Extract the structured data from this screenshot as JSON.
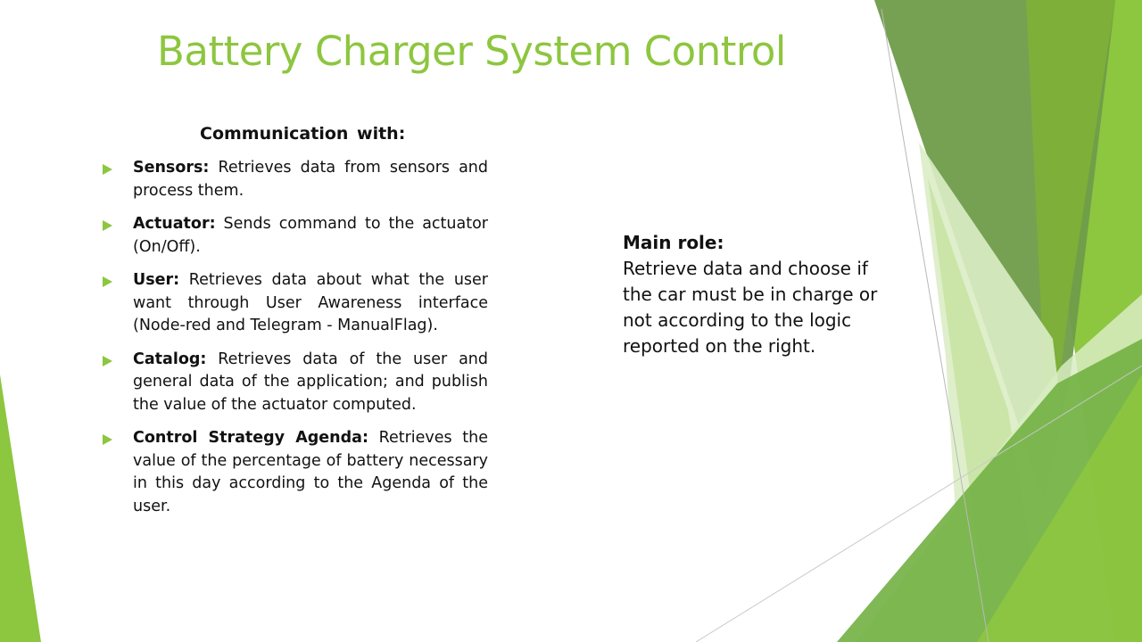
{
  "slide": {
    "title": "Battery Charger System Control",
    "communication_heading": "Communication with:",
    "bullets": [
      {
        "term": "Sensors:",
        "text": " Retrieves data from sensors and process them."
      },
      {
        "term": "Actuator:",
        "text": " Sends command to the actuator (On/Off)."
      },
      {
        "term": "User:",
        "text": " Retrieves data about what the user want through User Awareness interface (Node-red and Telegram - ManualFlag)."
      },
      {
        "term": "Catalog:",
        "text": " Retrieves data of the user and general data of the application; and publish the value of the actuator computed."
      },
      {
        "term": "Control Strategy Agenda:",
        "text": " Retrieves the value of the percentage of battery necessary in this day according to the Agenda of the user."
      }
    ],
    "main_role": {
      "label": "Main role:",
      "text": "Retrieve data and choose if the car must be in charge or not according to the logic reported on the right."
    }
  },
  "theme": {
    "accent": "#8dc63f",
    "dark_green": "#6a9a48",
    "light_green": "#d6eab5",
    "text_color": "#111111"
  }
}
